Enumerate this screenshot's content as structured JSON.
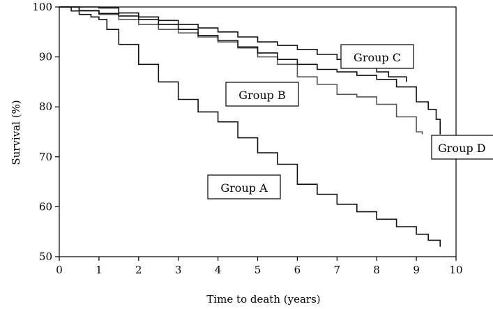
{
  "chart_data": {
    "type": "line",
    "title": "",
    "xlabel": "Time to death (years)",
    "ylabel": "Survival (%)",
    "xlim": [
      0,
      10
    ],
    "ylim": [
      50,
      100
    ],
    "x_ticks": [
      0,
      1,
      2,
      3,
      4,
      5,
      6,
      7,
      8,
      9,
      10
    ],
    "y_ticks": [
      50,
      60,
      70,
      80,
      90,
      100
    ],
    "grid": false,
    "legend": "none",
    "series": [
      {
        "name": "Group A",
        "color": "#111111",
        "x": [
          0,
          0.3,
          0.5,
          0.8,
          1.0,
          1.2,
          1.5,
          2.0,
          2.5,
          3.0,
          3.5,
          4.0,
          4.5,
          5.0,
          5.5,
          6.0,
          6.5,
          7.0,
          7.5,
          8.0,
          8.5,
          9.0,
          9.3,
          9.6,
          9.6
        ],
        "y": [
          100,
          99.2,
          98.5,
          98.0,
          97.5,
          95.5,
          92.5,
          88.5,
          85.0,
          81.5,
          79.0,
          77.0,
          73.8,
          70.8,
          68.5,
          64.5,
          62.5,
          60.5,
          59.0,
          57.5,
          56.0,
          54.5,
          53.3,
          53.3,
          52.0
        ]
      },
      {
        "name": "Group B",
        "color": "#555555",
        "x": [
          0,
          0.5,
          1.0,
          1.5,
          2.0,
          2.5,
          3.0,
          3.5,
          4.0,
          4.5,
          5.0,
          5.5,
          6.0,
          6.5,
          7.0,
          7.5,
          8.0,
          8.5,
          9.0,
          9.15
        ],
        "y": [
          100,
          99.2,
          98.5,
          97.5,
          96.5,
          95.5,
          94.8,
          94.0,
          93.0,
          91.8,
          90.0,
          88.5,
          86.0,
          84.5,
          82.5,
          82.0,
          80.5,
          78.0,
          75.0,
          74.5
        ]
      },
      {
        "name": "Group C",
        "color": "#111111",
        "x": [
          0,
          0.5,
          1.0,
          1.5,
          2.0,
          2.5,
          3.0,
          3.5,
          4.0,
          4.5,
          5.0,
          5.5,
          6.0,
          6.5,
          7.0,
          7.5,
          8.0,
          8.3,
          8.7,
          8.75
        ],
        "y": [
          100,
          100,
          99.8,
          98.8,
          98.0,
          97.3,
          96.5,
          95.8,
          95.0,
          94.0,
          93.0,
          92.3,
          91.5,
          90.5,
          89.5,
          88.0,
          87.0,
          86.0,
          86.0,
          85.0
        ]
      },
      {
        "name": "Group D",
        "color": "#111111",
        "x": [
          0,
          0.5,
          1.0,
          1.5,
          2.0,
          2.5,
          3.0,
          3.5,
          4.0,
          4.5,
          5.0,
          5.5,
          6.0,
          6.5,
          7.0,
          7.5,
          8.0,
          8.5,
          9.0,
          9.3,
          9.5,
          9.6
        ],
        "y": [
          100,
          99.3,
          98.7,
          98.2,
          97.5,
          96.5,
          95.5,
          94.3,
          93.3,
          92.0,
          90.8,
          89.5,
          88.5,
          87.5,
          87.0,
          86.3,
          85.5,
          84.0,
          81.0,
          79.5,
          77.5,
          74.5
        ]
      }
    ]
  },
  "labels": {
    "group_a": "Group A",
    "group_b": "Group B",
    "group_c": "Group C",
    "group_d": "Group D"
  }
}
